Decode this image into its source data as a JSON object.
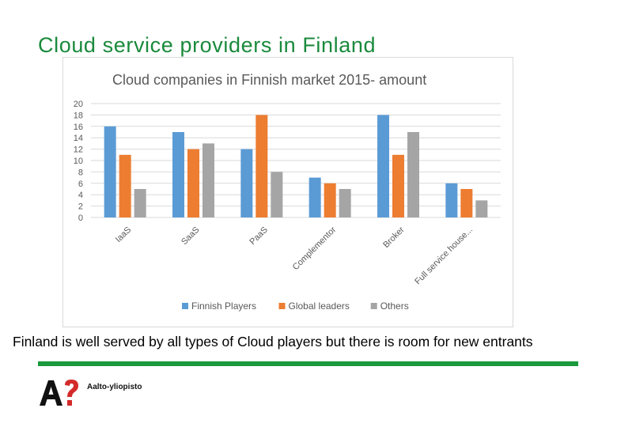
{
  "slide": {
    "title": "Cloud service providers in Finland",
    "caption": "Finland is well served by all types of Cloud players but there is room for new entrants",
    "logo_text": "Aalto-yliopisto",
    "accent_color": "#1a9a3c"
  },
  "chart_data": {
    "type": "bar",
    "title": "Cloud companies in Finnish market 2015- amount",
    "categories": [
      "IaaS",
      "SaaS",
      "PaaS",
      "Complementor",
      "Broker",
      "Full service house..."
    ],
    "series": [
      {
        "name": "Finnish Players",
        "color": "#5b9bd5",
        "values": [
          16,
          15,
          12,
          7,
          18,
          6
        ]
      },
      {
        "name": "Global leaders",
        "color": "#ed7d31",
        "values": [
          11,
          12,
          18,
          6,
          11,
          5
        ]
      },
      {
        "name": "Others",
        "color": "#a5a5a5",
        "values": [
          5,
          13,
          8,
          5,
          15,
          3
        ]
      }
    ],
    "ylim": [
      0,
      20
    ],
    "yticks": [
      0,
      2,
      4,
      6,
      8,
      10,
      12,
      14,
      16,
      18,
      20
    ],
    "xlabel": "",
    "ylabel": "",
    "grid": true,
    "legend": "bottom"
  }
}
